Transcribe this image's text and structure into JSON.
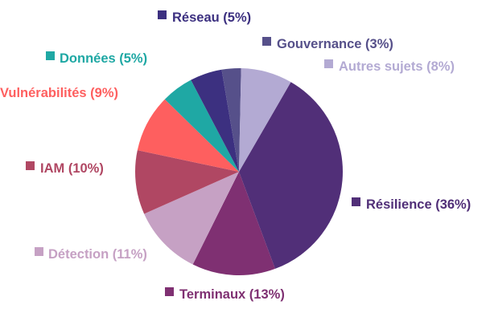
{
  "chart_data": {
    "type": "pie",
    "slices": [
      {
        "label": "Résilience (36%)",
        "value": 36,
        "color": "#512f78"
      },
      {
        "label": "Terminaux (13%)",
        "value": 13,
        "color": "#7f3072"
      },
      {
        "label": "Détection (11%)",
        "value": 11,
        "color": "#c6a1c4"
      },
      {
        "label": "IAM (10%)",
        "value": 10,
        "color": "#b04763"
      },
      {
        "label": "Vulnérabilités (9%)",
        "value": 9,
        "color": "#fe5f5f"
      },
      {
        "label": "Données (5%)",
        "value": 5,
        "color": "#1fa8a4"
      },
      {
        "label": "Réseau (5%)",
        "value": 5,
        "color": "#3c3080"
      },
      {
        "label": "Gouvernance (3%)",
        "value": 3,
        "color": "#56508a"
      },
      {
        "label": "Autres sujets (8%)",
        "value": 8,
        "color": "#b3aad3"
      }
    ],
    "title": "",
    "legend": "none"
  }
}
